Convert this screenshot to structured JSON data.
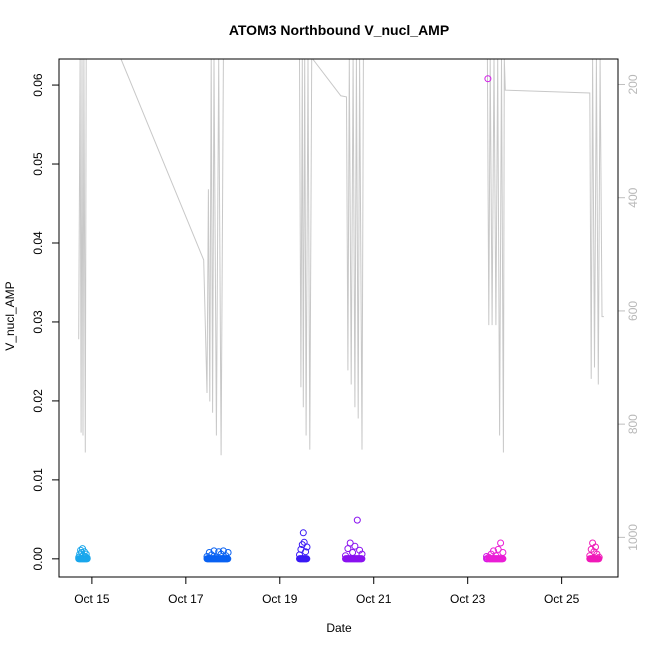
{
  "chart_data": {
    "type": "scatter",
    "title": "ATOM3 Northbound V_nucl_AMP",
    "xlabel": "Date",
    "ylabel": "V_nucl_AMP",
    "x_ticks": [
      "Oct 15",
      "Oct 17",
      "Oct 19",
      "Oct 21",
      "Oct 23",
      "Oct 25"
    ],
    "y_ticks": [
      "0.00",
      "0.01",
      "0.02",
      "0.03",
      "0.04",
      "0.05",
      "0.06"
    ],
    "y2_ticks": [
      "200",
      "400",
      "600",
      "800",
      "1000"
    ],
    "xlim_days": [
      14.3,
      26.2
    ],
    "ylim": [
      -0.0023,
      0.0633
    ],
    "y2lim": [
      1070,
      155
    ],
    "y2_reversed": true,
    "y2_color": "#bebebe",
    "grid": false,
    "marker": "open-circle",
    "series": [
      {
        "color": "#1aa7ec",
        "x": [
          14.72,
          14.74,
          14.76,
          14.78,
          14.8,
          14.82,
          14.84,
          14.86,
          14.88,
          14.9
        ],
        "y": [
          0.0002,
          0.0006,
          0.0011,
          0.0008,
          0.0013,
          0.0004,
          0.0009,
          0.0003,
          0.0006,
          0.0001
        ]
      },
      {
        "color": "#0a62f2",
        "x": [
          17.45,
          17.5,
          17.55,
          17.6,
          17.65,
          17.7,
          17.75,
          17.8,
          17.85,
          17.9
        ],
        "y": [
          0.0003,
          0.0008,
          0.0005,
          0.001,
          0.0002,
          0.0009,
          0.0006,
          0.001,
          0.0004,
          0.0008
        ]
      },
      {
        "color": "#3a1af5",
        "x": [
          19.42,
          19.45,
          19.48,
          19.5,
          19.52,
          19.55,
          19.58
        ],
        "y": [
          0.0005,
          0.0012,
          0.0018,
          0.0033,
          0.0021,
          0.0009,
          0.0015
        ]
      },
      {
        "color": "#8a12f0",
        "x": [
          20.4,
          20.45,
          20.5,
          20.55,
          20.6,
          20.65,
          20.7,
          20.75
        ],
        "y": [
          0.0004,
          0.0013,
          0.002,
          0.0008,
          0.0016,
          0.0049,
          0.0011,
          0.0006
        ]
      },
      {
        "color": "#d21be8",
        "x": [
          23.4,
          23.43
        ],
        "y": [
          0.0003,
          0.0608
        ]
      },
      {
        "color": "#ea1ed6",
        "x": [
          23.45,
          23.5,
          23.55,
          23.6,
          23.65,
          23.7,
          23.75
        ],
        "y": [
          0.0002,
          0.0006,
          0.001,
          0.0004,
          0.0012,
          0.002,
          0.0008
        ]
      },
      {
        "color": "#f01ab8",
        "x": [
          25.6,
          25.63,
          25.66,
          25.69,
          25.72,
          25.75,
          25.8
        ],
        "y": [
          0.0004,
          0.0012,
          0.002,
          0.0009,
          0.0015,
          0.0006,
          0.0002
        ]
      }
    ],
    "secondary_line": {
      "color": "#c8c8c8",
      "segments": [
        [
          [
            14.72,
            650
          ],
          [
            14.75,
            155
          ],
          [
            14.77,
            815
          ],
          [
            14.79,
            155
          ],
          [
            14.81,
            820
          ],
          [
            14.83,
            155
          ],
          [
            14.86,
            850
          ],
          [
            14.88,
            155
          ],
          [
            14.9,
            155
          ],
          [
            15.62,
            155
          ],
          [
            17.38,
            510
          ],
          [
            17.45,
            745
          ],
          [
            17.48,
            385
          ],
          [
            17.51,
            760
          ],
          [
            17.54,
            155
          ],
          [
            17.57,
            780
          ],
          [
            17.6,
            155
          ],
          [
            17.65,
            820
          ],
          [
            17.7,
            155
          ],
          [
            17.75,
            855
          ],
          [
            17.8,
            155
          ],
          [
            17.85,
            155
          ],
          [
            19.32,
            155
          ],
          [
            19.42,
            155
          ],
          [
            19.45,
            735
          ],
          [
            19.48,
            155
          ],
          [
            19.5,
            770
          ],
          [
            19.53,
            155
          ],
          [
            19.56,
            820
          ],
          [
            19.6,
            155
          ],
          [
            19.64,
            845
          ],
          [
            19.68,
            155
          ],
          [
            19.7,
            155
          ],
          [
            20.3,
            220
          ],
          [
            20.42,
            222
          ],
          [
            20.45,
            705
          ],
          [
            20.48,
            155
          ],
          [
            20.52,
            730
          ],
          [
            20.56,
            155
          ],
          [
            20.6,
            770
          ],
          [
            20.63,
            155
          ],
          [
            20.67,
            790
          ],
          [
            20.7,
            155
          ],
          [
            20.75,
            845
          ],
          [
            20.78,
            155
          ],
          [
            20.8,
            155
          ]
        ],
        [
          [
            23.38,
            155
          ],
          [
            23.42,
            155
          ],
          [
            23.45,
            625
          ],
          [
            23.48,
            155
          ],
          [
            23.52,
            625
          ],
          [
            23.56,
            155
          ],
          [
            23.6,
            625
          ],
          [
            23.64,
            155
          ],
          [
            23.68,
            820
          ],
          [
            23.72,
            155
          ],
          [
            23.76,
            850
          ],
          [
            23.78,
            155
          ],
          [
            23.8,
            210
          ],
          [
            25.6,
            215
          ],
          [
            25.63,
            720
          ],
          [
            25.66,
            155
          ],
          [
            25.7,
            700
          ],
          [
            25.74,
            155
          ],
          [
            25.78,
            730
          ],
          [
            25.82,
            155
          ],
          [
            25.86,
            610
          ],
          [
            25.9,
            610
          ]
        ]
      ]
    }
  }
}
